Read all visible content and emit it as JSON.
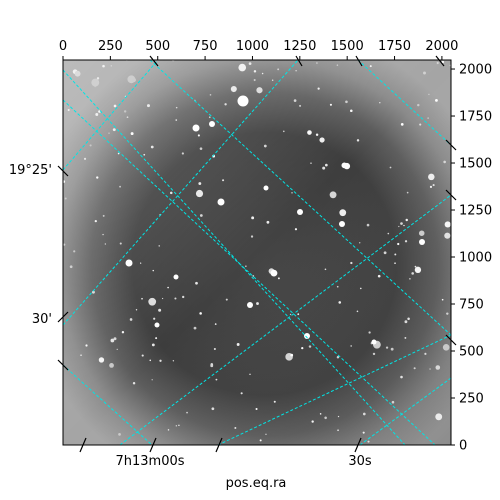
{
  "chart_data": {
    "type": "image",
    "title": "",
    "xlabel": "pos.eq.ra",
    "ylabel": "",
    "pixel_axes": {
      "x_range": [
        0,
        2048
      ],
      "y_range": [
        0,
        2048
      ],
      "x_ticks": [
        0,
        250,
        500,
        750,
        1000,
        1250,
        1500,
        1750,
        2000
      ],
      "y_ticks": [
        0,
        250,
        500,
        750,
        1000,
        1250,
        1500,
        1750,
        2000
      ],
      "x_tick_labels": [
        "0",
        "250",
        "500",
        "750",
        "1000",
        "1250",
        "1500",
        "1750",
        "2000"
      ],
      "y_tick_labels": [
        "0",
        "250",
        "500",
        "750",
        "1000",
        "1250",
        "1500",
        "1750",
        "2000"
      ]
    },
    "world_axes": {
      "ra_tick_labels": [
        "7h13m00s",
        "30s"
      ],
      "dec_tick_labels": [
        "19°25'",
        "30'"
      ]
    },
    "grid": true,
    "grid_color": "#00e5e5",
    "image_colormap": "gray",
    "background_color": "#ffffff"
  }
}
